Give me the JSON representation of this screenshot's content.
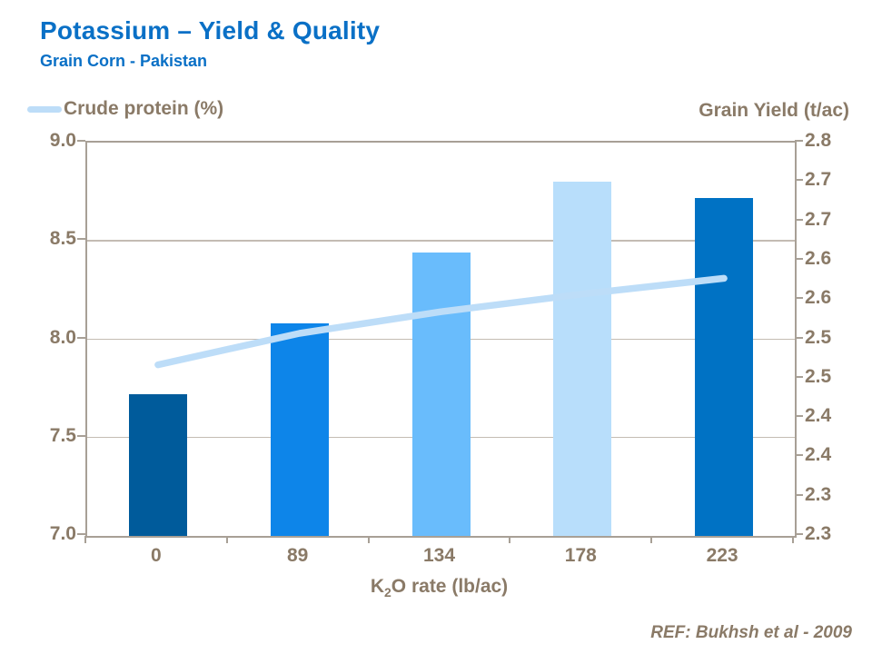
{
  "slide": {
    "title": "Potassium – Yield & Quality",
    "subtitle": "Grain Corn - Pakistan",
    "reference": "REF:  Bukhsh et al - 2009"
  },
  "colors": {
    "title_blue": "#0a70c6",
    "text_brown": "#8a7a67",
    "axis_line": "#a8a096",
    "grid_line": "#c4bcb3",
    "protein_line": "#bdddf8",
    "bar_colors": [
      "#005b9b",
      "#0d85e9",
      "#69bcfc",
      "#b8defb",
      "#0072c4"
    ]
  },
  "chart_data": {
    "type": "bar",
    "combo": "bar + line, dual axis",
    "title": "",
    "categories": [
      "0",
      "89",
      "134",
      "178",
      "223"
    ],
    "xlabel": "K2O rate (lb/ac)",
    "xlabel_parts": {
      "pre": "K",
      "sub": "2",
      "post": "O rate (lb/ac)"
    },
    "series": [
      {
        "name": "Grain Yield (t/ac)",
        "type": "bar",
        "axis": "right",
        "values": [
          2.48,
          2.57,
          2.66,
          2.75,
          2.73
        ]
      },
      {
        "name": "Crude protein (%)",
        "type": "line",
        "axis": "left",
        "values": [
          7.87,
          8.03,
          8.14,
          8.23,
          8.31
        ]
      }
    ],
    "left_axis": {
      "title": "Crude protein (%)",
      "min": 7.0,
      "max": 9.0,
      "tick_values": [
        9.0,
        8.5,
        8.0,
        7.5,
        7.0
      ],
      "tick_labels": [
        "9.0",
        "8.5",
        "8.0",
        "7.5",
        "7.0"
      ]
    },
    "right_axis": {
      "title": "Grain Yield (t/ac)",
      "min": 2.3,
      "max": 2.8,
      "tick_step": 0.05,
      "tick_labels": [
        "2.8",
        "2.7",
        "2.7",
        "2.6",
        "2.6",
        "2.5",
        "2.5",
        "2.4",
        "2.4",
        "2.3",
        "2.3"
      ]
    },
    "legend": {
      "position": "top-left",
      "entries": [
        {
          "label": "Crude protein (%)",
          "marker": "line"
        }
      ]
    },
    "grid": "horizontal lines at left-axis majors (0.5 steps)"
  }
}
